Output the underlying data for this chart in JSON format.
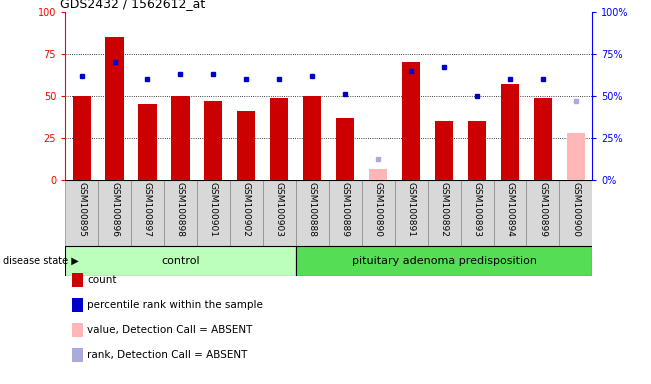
{
  "title": "GDS2432 / 1562612_at",
  "samples": [
    "GSM100895",
    "GSM100896",
    "GSM100897",
    "GSM100898",
    "GSM100901",
    "GSM100902",
    "GSM100903",
    "GSM100888",
    "GSM100889",
    "GSM100890",
    "GSM100891",
    "GSM100892",
    "GSM100893",
    "GSM100894",
    "GSM100899",
    "GSM100900"
  ],
  "count_values": [
    50,
    85,
    45,
    50,
    47,
    41,
    49,
    50,
    37,
    null,
    70,
    35,
    35,
    57,
    49,
    null
  ],
  "count_absent": [
    null,
    null,
    null,
    null,
    null,
    null,
    null,
    null,
    null,
    7,
    null,
    null,
    null,
    null,
    null,
    28
  ],
  "rank_values": [
    62,
    70,
    60,
    63,
    63,
    60,
    60,
    62,
    51,
    null,
    65,
    67,
    50,
    60,
    60,
    null
  ],
  "rank_absent": [
    null,
    null,
    null,
    null,
    null,
    null,
    null,
    null,
    null,
    13,
    null,
    null,
    null,
    null,
    null,
    47
  ],
  "control_count": 7,
  "disease_count": 9,
  "control_label": "control",
  "disease_label": "pituitary adenoma predisposition",
  "disease_state_label": "disease state",
  "bar_color_red": "#cc0000",
  "bar_color_pink": "#ffb6b6",
  "dot_color_blue": "#0000cc",
  "dot_color_lightblue": "#aaaadd",
  "bg_control": "#bbffbb",
  "bg_disease": "#55dd55",
  "grid_levels": [
    25,
    50,
    75
  ],
  "legend_items": [
    {
      "label": "count",
      "color": "#cc0000"
    },
    {
      "label": "percentile rank within the sample",
      "color": "#0000cc"
    },
    {
      "label": "value, Detection Call = ABSENT",
      "color": "#ffb6b6"
    },
    {
      "label": "rank, Detection Call = ABSENT",
      "color": "#aaaadd"
    }
  ]
}
